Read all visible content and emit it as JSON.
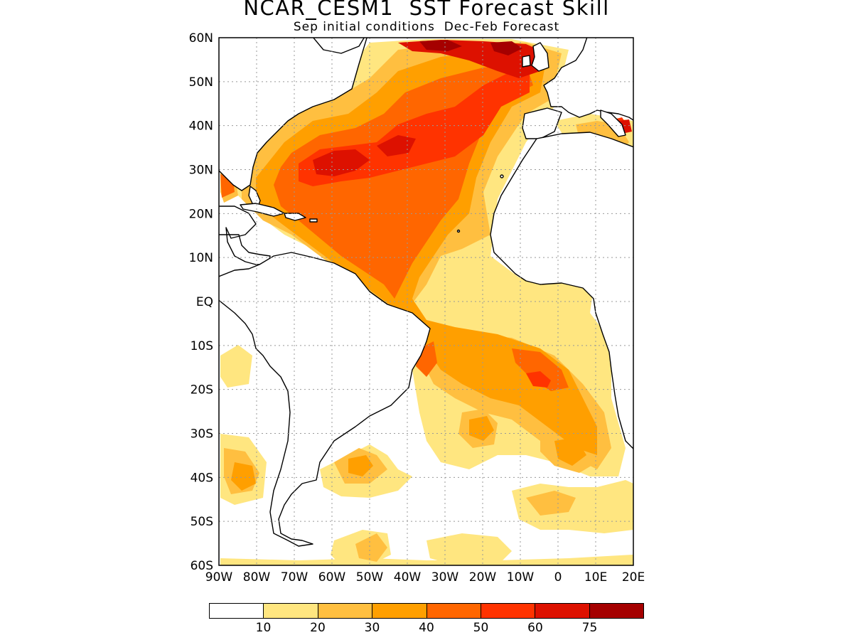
{
  "title": "NCAR_CESM1  SST Forecast Skill",
  "subtitle": "Sep initial conditions  Dec-Feb Forecast",
  "map": {
    "lon_range": [
      -90,
      20
    ],
    "lat_range": [
      -60,
      60
    ],
    "lat_ticks": [
      "60N",
      "50N",
      "40N",
      "30N",
      "20N",
      "10N",
      "EQ",
      "10S",
      "20S",
      "30S",
      "40S",
      "50S",
      "60S"
    ],
    "lon_ticks": [
      "90W",
      "80W",
      "70W",
      "60W",
      "50W",
      "40W",
      "30W",
      "20W",
      "10W",
      "0",
      "10E",
      "20E"
    ],
    "gridlines": true
  },
  "colorbar": {
    "colors": [
      "#ffffff",
      "#ffe680",
      "#ffbf40",
      "#ff9f00",
      "#ff6600",
      "#ff3300",
      "#dd1100",
      "#a50000"
    ],
    "labels": [
      "10",
      "20",
      "30",
      "40",
      "50",
      "60",
      "75"
    ]
  }
}
